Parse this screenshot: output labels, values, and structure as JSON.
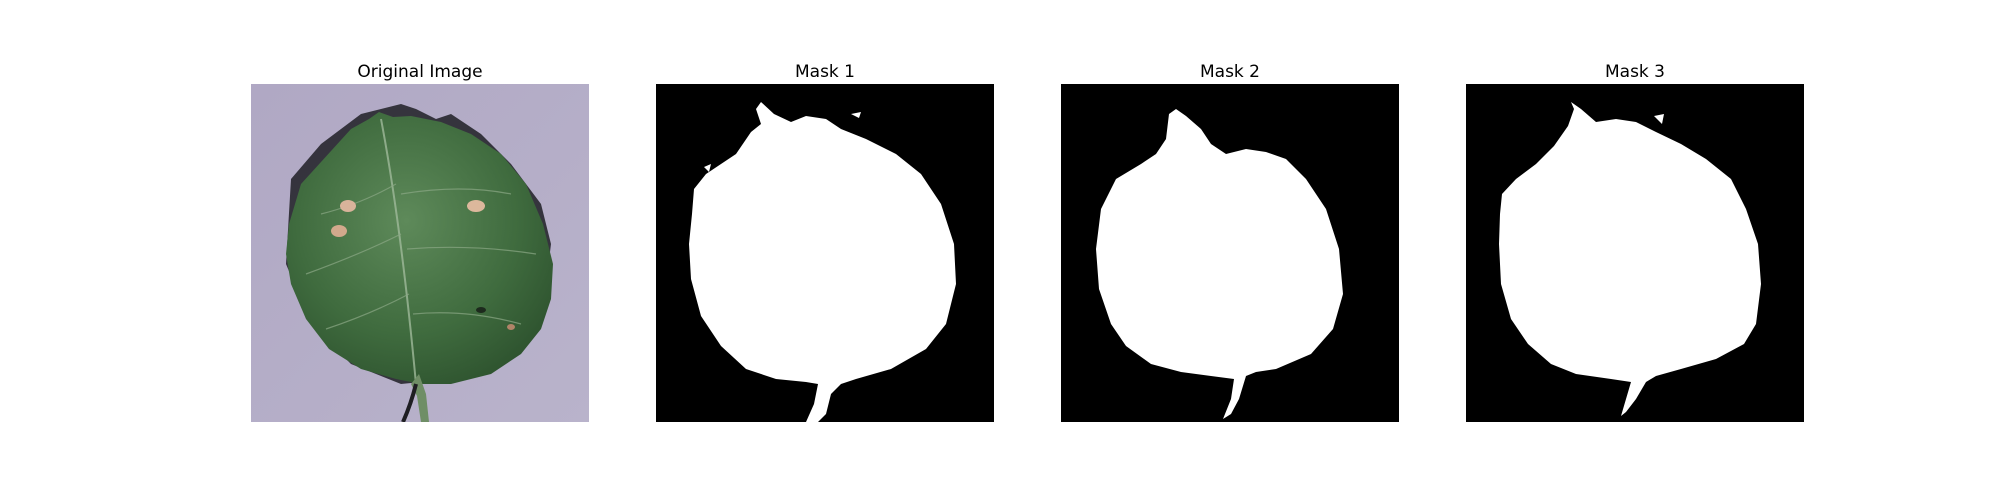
{
  "figure": {
    "panels": [
      {
        "title": "Original Image",
        "kind": "photo",
        "subject": "leaf"
      },
      {
        "title": "Mask 1",
        "kind": "binary-mask"
      },
      {
        "title": "Mask 2",
        "kind": "binary-mask"
      },
      {
        "title": "Mask 3",
        "kind": "binary-mask"
      }
    ],
    "colors": {
      "background": "#ffffff",
      "mask_background": "#000000",
      "mask_foreground": "#ffffff",
      "leaf_green": "#3f6b3e",
      "surface_lavender": "#a9a3bd"
    }
  }
}
